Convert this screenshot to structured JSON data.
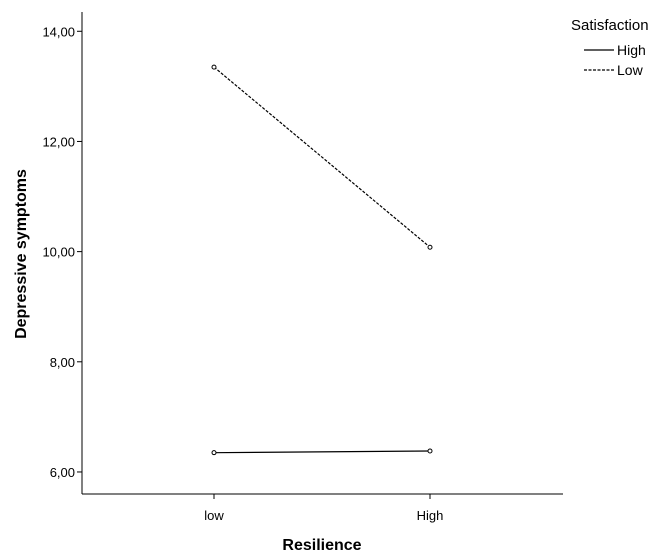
{
  "chart_data": {
    "type": "line",
    "categories": [
      "low",
      "High"
    ],
    "xlabel": "Resilience",
    "ylabel": "Depressive symptoms",
    "ylim": [
      5.6,
      14.35
    ],
    "yticks": [
      "6,00",
      "8,00",
      "10,00",
      "12,00",
      "14,00"
    ],
    "ytick_values": [
      6,
      8,
      10,
      12,
      14
    ],
    "grid": false,
    "legend": {
      "title": "Satisfaction",
      "position": "top-right"
    },
    "series": [
      {
        "name": "High",
        "values": [
          6.35,
          6.38
        ],
        "line_style": "solid"
      },
      {
        "name": "Low",
        "values": [
          13.35,
          10.08
        ],
        "line_style": "dashed"
      }
    ]
  }
}
